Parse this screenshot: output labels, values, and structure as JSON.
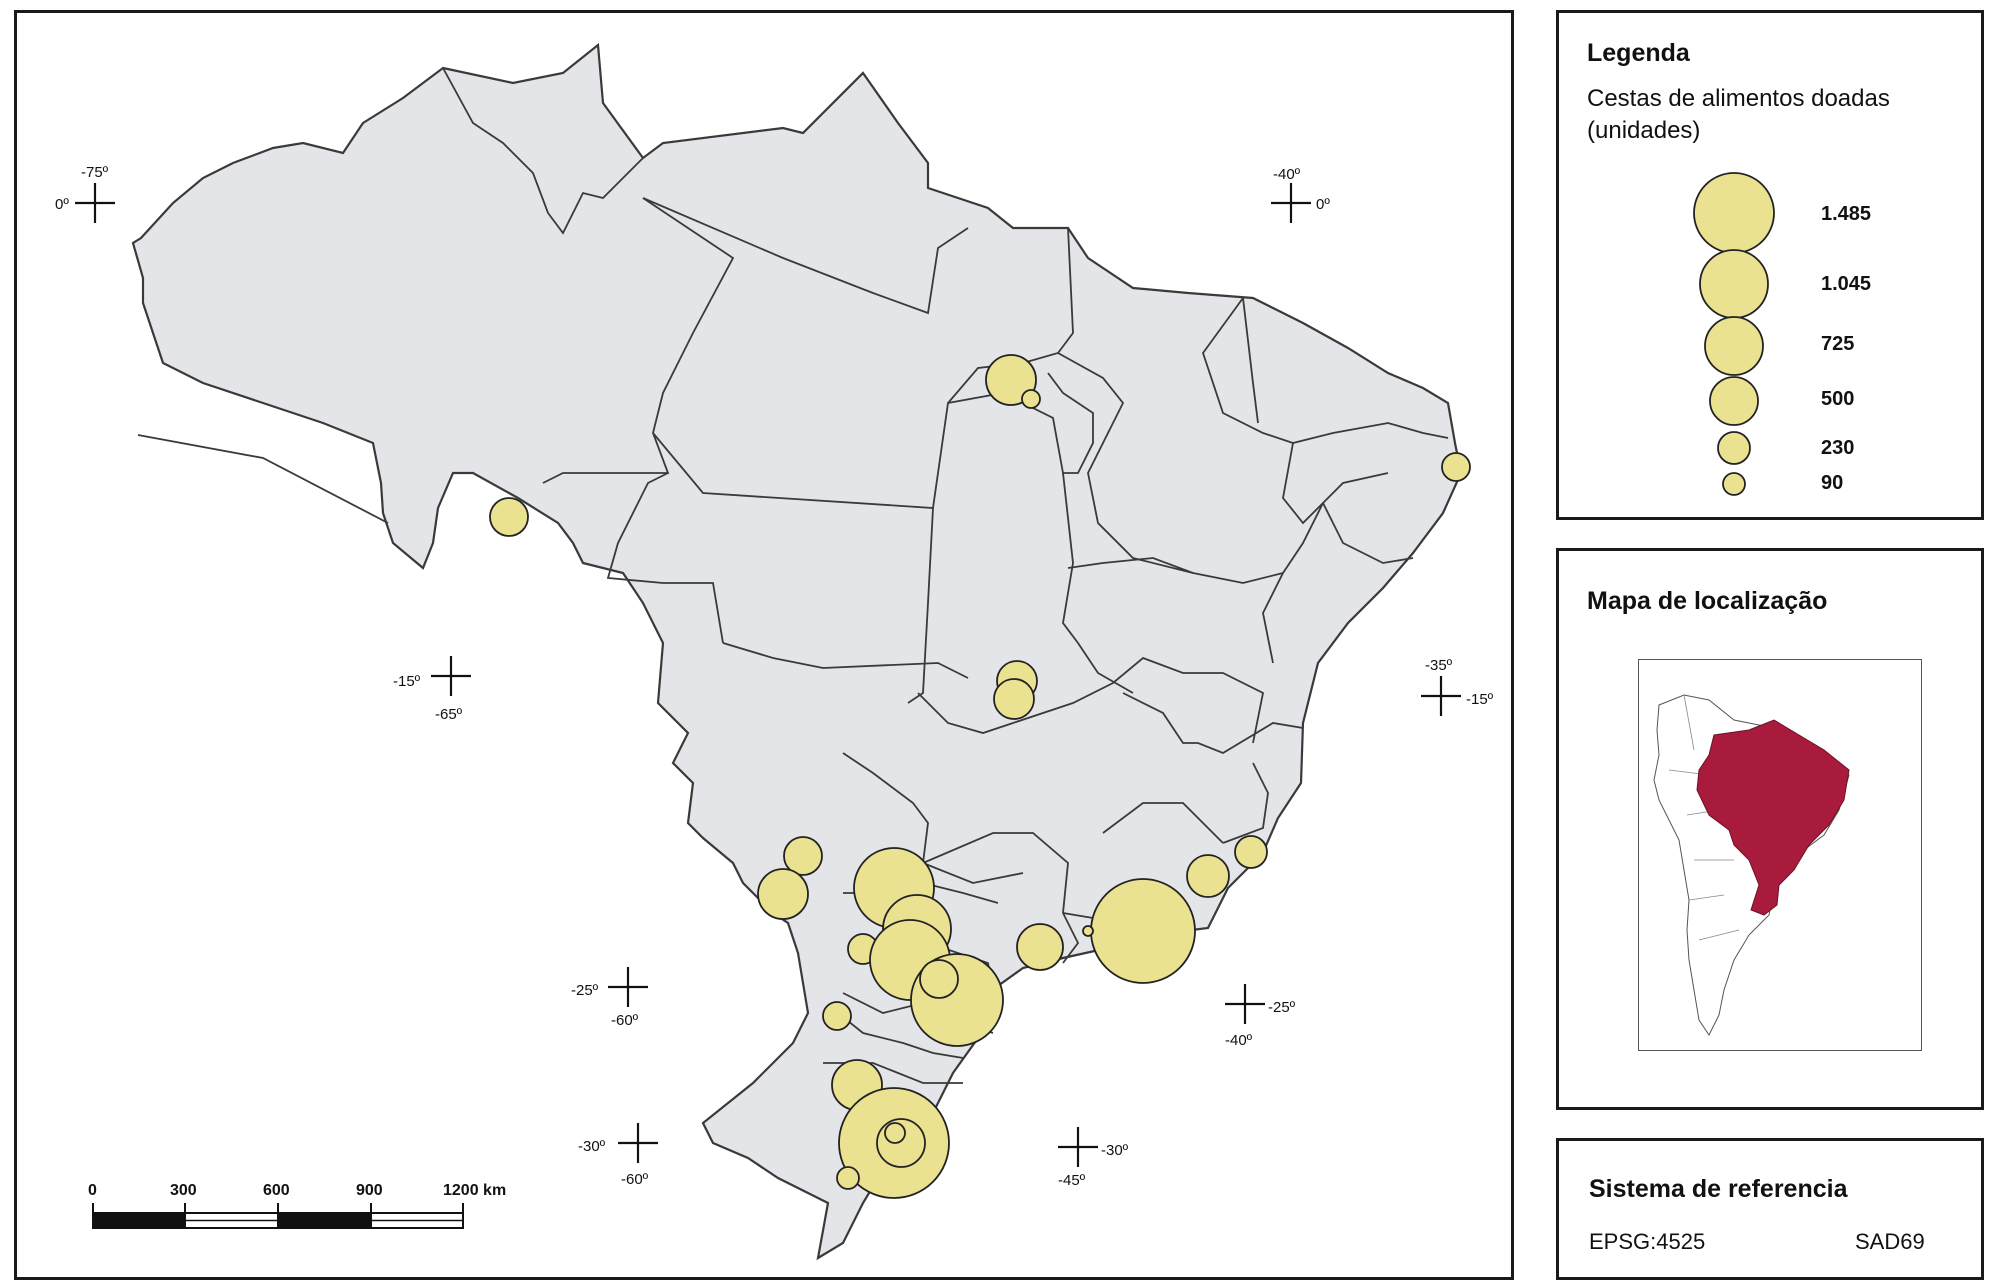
{
  "legend": {
    "title": "Legenda",
    "subtitle_line1": "Cestas de alimentos doadas",
    "subtitle_line2": "(unidades)",
    "classes": [
      {
        "value": 1485,
        "label": "1.485"
      },
      {
        "value": 1045,
        "label": "1.045"
      },
      {
        "value": 725,
        "label": "725"
      },
      {
        "value": 500,
        "label": "500"
      },
      {
        "value": 230,
        "label": "230"
      },
      {
        "value": 90,
        "label": "90"
      }
    ]
  },
  "locator": {
    "title": "Mapa de localização",
    "highlight_color": "#a91b3c"
  },
  "reference_system": {
    "title": "Sistema de referencia",
    "epsg": "EPSG:4525",
    "datum": "SAD69"
  },
  "scale_bar": {
    "ticks": [
      "0",
      "300",
      "600",
      "900",
      "1200 km"
    ]
  },
  "graticule": [
    {
      "lon_label": "-75º",
      "lat_label": "0º"
    },
    {
      "lon_label": "-40º",
      "lat_label": "0º"
    },
    {
      "lat_label": "-15º",
      "lon_label": "-65º"
    },
    {
      "lon_label": "-35º",
      "lat_label": "-15º"
    },
    {
      "lat_label": "-25º",
      "lon_label": "-60º"
    },
    {
      "lat_label": "-25º",
      "lon_label": "-40º"
    },
    {
      "lat_label": "-30º",
      "lon_label": "-60º"
    },
    {
      "lat_label": "-30º",
      "lon_label": "-45º"
    }
  ],
  "colors": {
    "land_fill": "#e4e5e9",
    "border": "#3a3a3a",
    "symbol_fill": "#eae291",
    "symbol_stroke": "#222222"
  }
}
